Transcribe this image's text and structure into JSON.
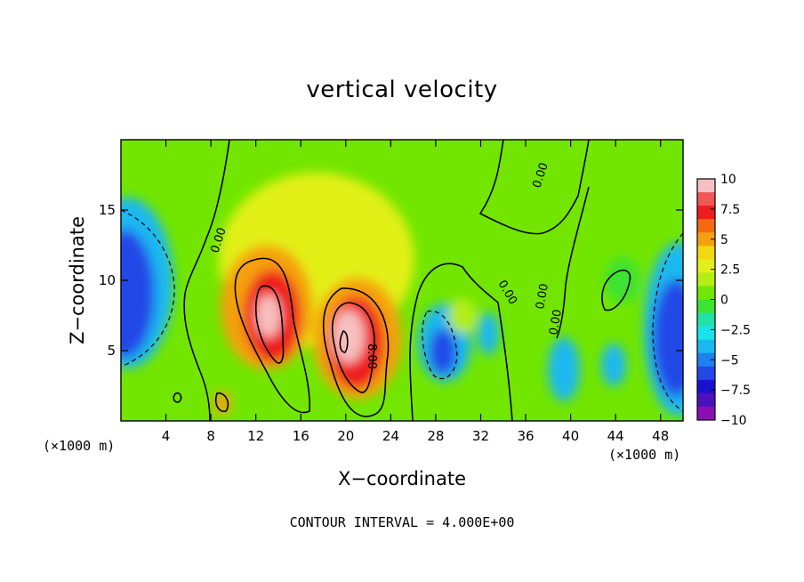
{
  "chart_data": {
    "type": "heatmap",
    "title": "vertical velocity",
    "xlabel": "X−coordinate",
    "ylabel": "Z−coordinate",
    "x_unit_label": "(×1000 m)",
    "footer": "CONTOUR INTERVAL = 4.000E+00",
    "xlim": [
      0,
      50
    ],
    "ylim": [
      0,
      20
    ],
    "x_ticks": [
      4,
      8,
      12,
      16,
      20,
      24,
      28,
      32,
      36,
      40,
      44,
      48
    ],
    "x_tick_labels": [
      "4",
      "8",
      "12",
      "16",
      "20",
      "24",
      "28",
      "32",
      "36",
      "40",
      "44",
      "48"
    ],
    "y_ticks": [
      5,
      10,
      15
    ],
    "y_tick_labels": [
      "5",
      "10",
      "15"
    ],
    "colorbar": {
      "range": [
        -10,
        10
      ],
      "ticks": [
        10,
        7.5,
        5,
        2.5,
        0,
        -2.5,
        -5,
        -7.5,
        -10
      ],
      "tick_labels": [
        "10",
        "7.5",
        "5",
        "2.5",
        "0",
        "−2.5",
        "−5",
        "−7.5",
        "−10"
      ],
      "colors": [
        "#f7c0c0",
        "#f05858",
        "#ee1c1c",
        "#f56a10",
        "#f5a010",
        "#f2d810",
        "#e2f018",
        "#b4ee12",
        "#72e600",
        "#3de232",
        "#22e2a8",
        "#18e4ec",
        "#1ab8f0",
        "#1e80ee",
        "#2448e8",
        "#1c10d0",
        "#4c10bc",
        "#8a10b6"
      ]
    },
    "contour_labels": [
      "0.00",
      "0.00",
      "0.00",
      "0.00",
      "0.00",
      "8.00"
    ],
    "features": [
      {
        "x": 1.5,
        "z": 8.5,
        "value": -7,
        "sx": 2.6,
        "sz": 4.5
      },
      {
        "x": 48.8,
        "z": 6,
        "value": -7,
        "sx": 2.4,
        "sz": 4.5
      },
      {
        "x": 13,
        "z": 7.5,
        "value": 7.5,
        "sx": 2.2,
        "sz": 3.8
      },
      {
        "x": 20.6,
        "z": 5.5,
        "value": 8,
        "sx": 2.2,
        "sz": 3.4
      },
      {
        "x": 28.8,
        "z": 5,
        "value": -6,
        "sx": 1.3,
        "sz": 2.4
      },
      {
        "x": 33,
        "z": 5.5,
        "value": -3,
        "sx": 1,
        "sz": 1.6
      },
      {
        "x": 39.5,
        "z": 3.5,
        "value": -4,
        "sx": 1.3,
        "sz": 2.5
      },
      {
        "x": 43.5,
        "z": 4.5,
        "value": -3,
        "sx": 1.2,
        "sz": 2
      },
      {
        "x": 17,
        "z": 13,
        "value": 2.5,
        "sx": 4,
        "sz": 4
      },
      {
        "x": 9.5,
        "z": 1.5,
        "value": 3,
        "sx": 0.6,
        "sz": 1
      }
    ]
  }
}
